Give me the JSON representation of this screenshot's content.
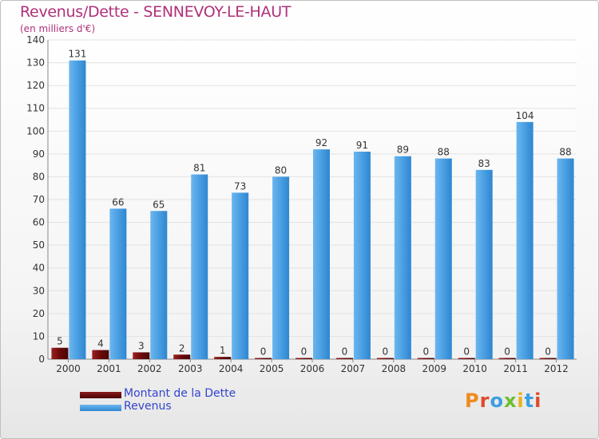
{
  "header": {
    "title": "Revenus/Dette - SENNEVOY-LE-HAUT",
    "subtitle": "(en milliers d'€)"
  },
  "legend": [
    {
      "label": "Montant de la Dette",
      "color": "#6b0a0a"
    },
    {
      "label": "Revenus",
      "color": "#4a9fe2"
    }
  ],
  "logo": {
    "text": "Proxiti"
  },
  "chart_data": {
    "type": "bar",
    "categories": [
      "2000",
      "2001",
      "2002",
      "2003",
      "2004",
      "2005",
      "2006",
      "2007",
      "2008",
      "2009",
      "2010",
      "2011",
      "2012"
    ],
    "series": [
      {
        "name": "Montant de la Dette",
        "color": "#6b0a0a",
        "values": [
          5,
          4,
          3,
          2,
          1,
          0,
          0,
          0,
          0,
          0,
          0,
          0,
          0
        ]
      },
      {
        "name": "Revenus",
        "color": "#4a9fe2",
        "values": [
          131,
          66,
          65,
          81,
          73,
          80,
          92,
          91,
          89,
          88,
          83,
          104,
          88
        ]
      }
    ],
    "ylim": [
      0,
      140
    ],
    "yticks": [
      0,
      10,
      20,
      30,
      40,
      50,
      60,
      70,
      80,
      90,
      100,
      110,
      120,
      130,
      140
    ],
    "grid": true,
    "legend_position": "bottom-left"
  }
}
